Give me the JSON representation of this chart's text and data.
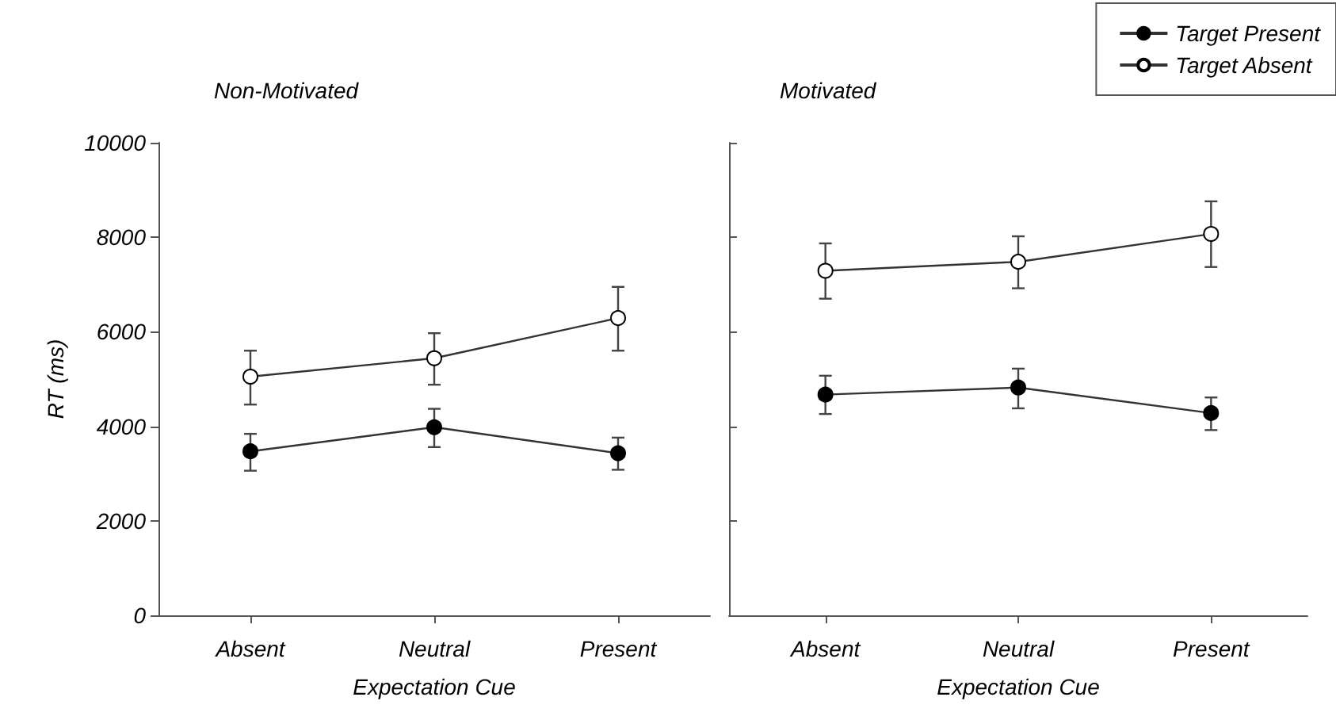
{
  "chart_data": [
    {
      "type": "line",
      "title": "Non-Motivated",
      "xlabel": "Expectation Cue",
      "ylabel": "RT (ms)",
      "categories": [
        "Absent",
        "Neutral",
        "Present"
      ],
      "ylim": [
        0,
        10000
      ],
      "yticks": [
        0,
        2000,
        4000,
        6000,
        8000,
        10000
      ],
      "grid": false,
      "legend": false,
      "marker": "circle",
      "line_style": "solid",
      "series": [
        {
          "color": "#000000",
          "values": [
            3470,
            3980,
            3430
          ],
          "errors": [
            [
              3060,
              3840
            ],
            [
              3560,
              4370
            ],
            [
              3080,
              3760
            ]
          ]
        },
        {
          "color": "#ffffff",
          "values": [
            5050,
            5440,
            6290
          ],
          "errors": [
            [
              4460,
              5600
            ],
            [
              4880,
              5970
            ],
            [
              5600,
              6950
            ]
          ]
        }
      ]
    },
    {
      "type": "line",
      "title": "Motivated",
      "xlabel": "Expectation Cue",
      "categories": [
        "Absent",
        "Neutral",
        "Present"
      ],
      "ylim": [
        0,
        10000
      ],
      "yticks": [
        0,
        2000,
        4000,
        6000,
        8000,
        10000
      ],
      "tick_labels": "x",
      "grid": false,
      "legend": "top right",
      "marker": "circle",
      "line_style": "solid",
      "series": [
        {
          "name": "Target Present",
          "color": "#000000",
          "values": [
            4670,
            4820,
            4280
          ],
          "errors": [
            [
              4260,
              5070
            ],
            [
              4380,
              5220
            ],
            [
              3920,
              4610
            ]
          ]
        },
        {
          "name": "Target Absent",
          "color": "#ffffff",
          "values": [
            7290,
            7480,
            8070
          ],
          "errors": [
            [
              6700,
              7870
            ],
            [
              6920,
              8020
            ],
            [
              7370,
              8760
            ]
          ]
        }
      ]
    }
  ]
}
